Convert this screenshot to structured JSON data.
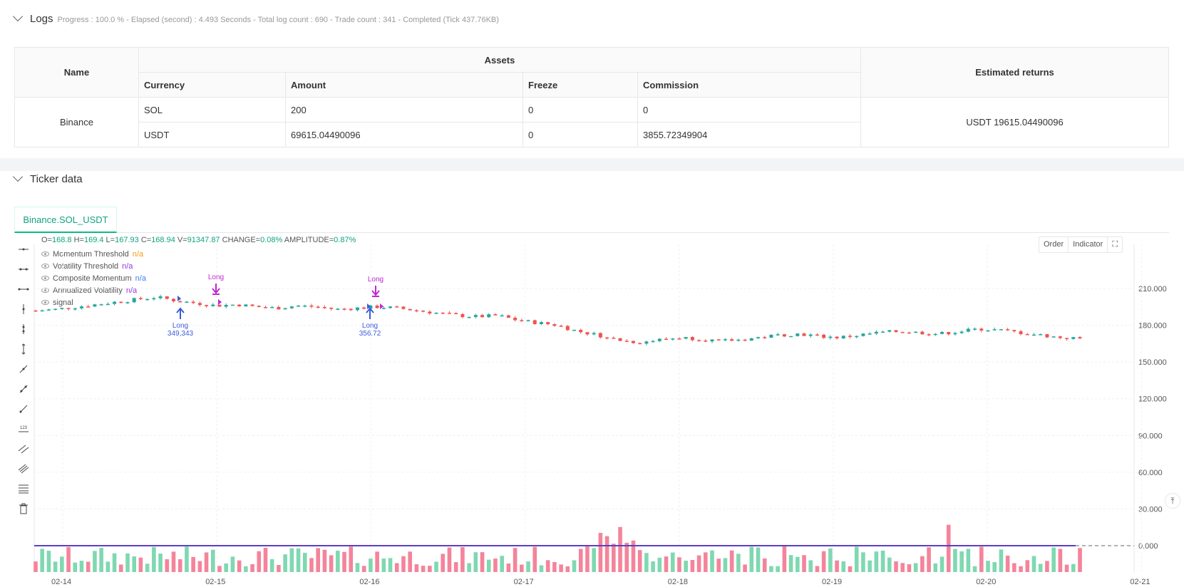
{
  "logs": {
    "title": "Logs",
    "meta": "Progress : 100.0 % - Elapsed (second) : 4.493  Seconds - Total log count : 690 - Trade count : 341 - Completed (Tick 437.76KB)"
  },
  "assets_table": {
    "headers": {
      "name": "Name",
      "assets": "Assets",
      "estimated": "Estimated returns",
      "currency": "Currency",
      "amount": "Amount",
      "freeze": "Freeze",
      "commission": "Commission"
    },
    "exchange": "Binance",
    "rows": [
      {
        "currency": "SOL",
        "amount": "200",
        "freeze": "0",
        "commission": "0"
      },
      {
        "currency": "USDT",
        "amount": "69615.04490096",
        "freeze": "0",
        "commission": "3855.72349904"
      }
    ],
    "estimated_returns": "USDT 19615.04490096"
  },
  "ticker": {
    "title": "Ticker data",
    "tab": "Binance.SOL_USDT"
  },
  "ohlc": {
    "o_label": "O=",
    "o": "168.8",
    "h_label": "H=",
    "h": "169.4",
    "l_label": "L=",
    "l": "167.93",
    "c_label": "C=",
    "c": "168.94",
    "v_label": "V=",
    "v": "91347.87",
    "change_label": "CHANGE=",
    "change": "0.08%",
    "amp_label": "AMPLITUDE=",
    "amp": "0.87%"
  },
  "legend": [
    {
      "label": "Momentum Threshold",
      "value": "n/a",
      "color": "#f59e0b"
    },
    {
      "label": "Volatility Threshold",
      "value": "n/a",
      "color": "#9333ea"
    },
    {
      "label": "Composite Momentum",
      "value": "n/a",
      "color": "#3b82f6"
    },
    {
      "label": "Annualized Volatility",
      "value": "n/a",
      "color": "#9333ea"
    },
    {
      "label": "signal",
      "value": "",
      "color": "#555"
    }
  ],
  "chart_buttons": {
    "order": "Order",
    "indicator": "Indicator"
  },
  "chart_data": {
    "type": "candlestick",
    "y_ticks": [
      "210.000",
      "180.000",
      "150.000",
      "120.000",
      "90.000",
      "60.000",
      "30.000",
      "0.000"
    ],
    "ylim": [
      -7,
      228
    ],
    "x_ticks": [
      "02-14",
      "02-15",
      "02-16",
      "02-17",
      "02-18",
      "02-19",
      "02-20",
      "02-21"
    ],
    "close_path": [
      192,
      193,
      195,
      197,
      199,
      201,
      203,
      200,
      198,
      196,
      197,
      195,
      194,
      196,
      195,
      193,
      194,
      195,
      194,
      192,
      190,
      188,
      187,
      188,
      184,
      182,
      180,
      175,
      172,
      168,
      166,
      168,
      170,
      169,
      167,
      168,
      170,
      172,
      173,
      171,
      170,
      172,
      174,
      175,
      174,
      173,
      175,
      177,
      176,
      174,
      172,
      170,
      169
    ],
    "annotations": [
      {
        "text": "Long",
        "sub": "349,343",
        "color": "#3b5bdb",
        "kind": "buy"
      },
      {
        "text": "Long",
        "color": "#c026d3",
        "kind": "sell"
      },
      {
        "text": "Long",
        "color": "#c026d3",
        "kind": "sell"
      },
      {
        "text": "Long",
        "sub": "356.72",
        "color": "#3b5bdb",
        "kind": "buy"
      }
    ],
    "colors": {
      "up": "#26a69a",
      "down": "#ef5350",
      "indicator": "#5b3fc4"
    }
  }
}
